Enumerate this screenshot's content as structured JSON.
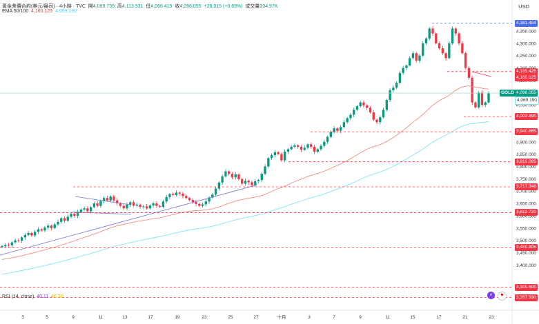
{
  "header": {
    "title": "黃金差價合約(美元/盎司) · 4小時 · TVC",
    "open_label": "開",
    "open": "4,069.739",
    "high_label": "高",
    "high": "4,113.531",
    "low_label": "低",
    "low": "4,066.415",
    "close_label": "收",
    "close": "4,098.055",
    "change": "+28.015 (+0.69%)",
    "volume_label": "成交量",
    "volume": "304.97K"
  },
  "ema": {
    "label": "EMA 50/100",
    "ema50": "4,160.125",
    "ema100": "4,069.190"
  },
  "rsi": {
    "label": "RSI (14, close)",
    "v1": "40.11",
    "v2": "46.30"
  },
  "currency": "USD",
  "symbol_tag": "GOLD",
  "colors": {
    "up": "#089981",
    "down": "#f23645",
    "ema50": "#f28b82",
    "ema100": "#7fe3f5",
    "trend": "#7b7fd8"
  },
  "chart_data": {
    "type": "candlestick",
    "y_ticks": [
      3400,
      3450,
      3500,
      3550,
      3600,
      3650,
      3700,
      3750,
      3800,
      3850,
      3900,
      3950,
      4000,
      4050,
      4100,
      4150,
      4200,
      4250,
      4300,
      4350
    ],
    "y_tick_labels": [
      "3,400.000",
      "3,450.000",
      "3,500.000",
      "3,550.000",
      "3,600.000",
      "3,650.000",
      "3,700.000",
      "3,750.000",
      "3,800.000",
      "3,850.000",
      "3,900.000",
      "3,950.000",
      "4,000.000",
      "4,050.000",
      "4,100.000",
      "4,150.000",
      "4,200.000",
      "4,250.000",
      "4,300.000",
      "4,350.000"
    ],
    "x_labels": [
      "3",
      "5",
      "9",
      "11",
      "13",
      "17",
      "19",
      "23",
      "25",
      "27",
      "十月",
      "3",
      "7",
      "9",
      "11",
      "15",
      "17",
      "21",
      "23"
    ],
    "price_levels": [
      4381.484,
      4185.425,
      4002.89,
      3940.685,
      3819.095,
      3717.348,
      3612.72,
      3469.805,
      3309.6,
      3267.93
    ],
    "price_level_labels": [
      "4,381.484",
      "4,185.425",
      "4,002.890",
      "3,940.685",
      "3,819.095",
      "3,717.348",
      "3,612.720",
      "3,469.805",
      "3,309.600",
      "3,267.930"
    ],
    "last_price": 4098.055,
    "last_price_label": "4,098.055",
    "ema50_last": 4160.125,
    "ema50_label": "4,160.125",
    "ema100_last": 4069.19,
    "ema100_label": "4,069.190",
    "closes": [
      3477,
      3482,
      3480,
      3492,
      3500,
      3498,
      3512,
      3522,
      3530,
      3520,
      3535,
      3545,
      3540,
      3552,
      3560,
      3550,
      3565,
      3575,
      3590,
      3580,
      3596,
      3608,
      3600,
      3615,
      3625,
      3630,
      3618,
      3635,
      3650,
      3640,
      3660,
      3672,
      3662,
      3678,
      3662,
      3650,
      3640,
      3630,
      3645,
      3655,
      3641,
      3645,
      3636,
      3638,
      3630,
      3642,
      3650,
      3640,
      3636,
      3658,
      3676,
      3688,
      3684,
      3694,
      3690,
      3680,
      3672,
      3664,
      3656,
      3648,
      3640,
      3646,
      3658,
      3674,
      3686,
      3710,
      3735,
      3760,
      3780,
      3770,
      3756,
      3768,
      3748,
      3730,
      3742,
      3736,
      3724,
      3740,
      3745,
      3770,
      3800,
      3834,
      3846,
      3858,
      3850,
      3825,
      3860,
      3870,
      3880,
      3886,
      3880,
      3868,
      3876,
      3890,
      3880,
      3860,
      3870,
      3884,
      3900,
      3920,
      3940,
      3955,
      3945,
      3960,
      3980,
      3996,
      4010,
      4030,
      4045,
      4060,
      4048,
      4038,
      4020,
      3990,
      3980,
      4000,
      4030,
      4070,
      4110,
      4120,
      4140,
      4180,
      4200,
      4210,
      4240,
      4260,
      4230,
      4250,
      4300,
      4320,
      4360,
      4340,
      4300,
      4280,
      4260,
      4240,
      4300,
      4360,
      4340,
      4300,
      4260,
      4200,
      4160,
      4060,
      4040,
      4100,
      4050,
      4060,
      4098
    ],
    "ema50_series": "computed-from-closes",
    "ema100_series": "computed-from-closes",
    "trend_lines": "ascending support and descending wedge lines"
  }
}
